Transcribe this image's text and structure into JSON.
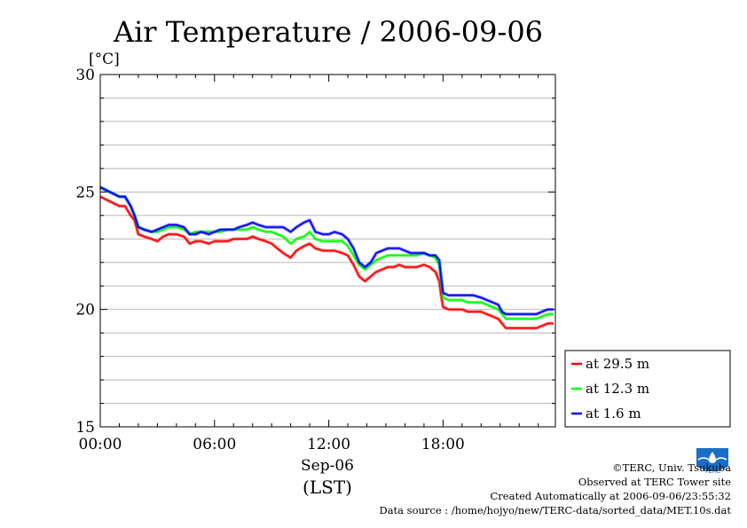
{
  "chart_data": {
    "type": "line",
    "title": "Air Temperature / 2006-09-06",
    "ylabel": "[°C]",
    "xlabel": "Sep-06",
    "xlabel2": "(LST)",
    "ylim": [
      15,
      30
    ],
    "xlim_hours": [
      0,
      23.9
    ],
    "yticks": [
      "15",
      "20",
      "25",
      "30"
    ],
    "yticks_values": [
      15,
      20,
      25,
      30
    ],
    "xticks": [
      "00:00",
      "06:00",
      "12:00",
      "18:00"
    ],
    "xticks_hours": [
      0,
      6,
      12,
      18
    ],
    "grid": true,
    "legend_position": "bottom-right-outside",
    "series": [
      {
        "name": "at 29.5 m",
        "color": "#ff0000",
        "x_hours": [
          0,
          0.5,
          1,
          1.3,
          1.6,
          1.8,
          2,
          2.3,
          2.7,
          3,
          3.3,
          3.6,
          4,
          4.4,
          4.7,
          5,
          5.3,
          5.7,
          6,
          6.3,
          6.7,
          7,
          7.3,
          7.7,
          8,
          8.3,
          8.7,
          9,
          9.3,
          9.6,
          10,
          10.3,
          10.7,
          11,
          11.3,
          11.7,
          12,
          12.3,
          12.7,
          13,
          13.3,
          13.6,
          13.9,
          14.2,
          14.5,
          14.8,
          15.1,
          15.4,
          15.7,
          16,
          16.3,
          16.6,
          17,
          17.3,
          17.6,
          17.8,
          17.9,
          18,
          18.3,
          18.7,
          19,
          19.3,
          19.6,
          20,
          20.3,
          20.6,
          20.9,
          21.1,
          21.3,
          21.6,
          22,
          22.3,
          22.6,
          22.9,
          23.2,
          23.5,
          23.8
        ],
        "values": [
          24.8,
          24.6,
          24.4,
          24.4,
          24.0,
          23.8,
          23.2,
          23.1,
          23.0,
          22.9,
          23.1,
          23.2,
          23.2,
          23.1,
          22.8,
          22.9,
          22.9,
          22.8,
          22.9,
          22.9,
          22.9,
          23.0,
          23.0,
          23.0,
          23.1,
          23.0,
          22.9,
          22.8,
          22.6,
          22.4,
          22.2,
          22.5,
          22.7,
          22.8,
          22.6,
          22.5,
          22.5,
          22.5,
          22.4,
          22.3,
          21.9,
          21.4,
          21.2,
          21.4,
          21.6,
          21.7,
          21.8,
          21.8,
          21.9,
          21.8,
          21.8,
          21.8,
          21.9,
          21.8,
          21.6,
          21.2,
          20.6,
          20.1,
          20.0,
          20.0,
          20.0,
          19.9,
          19.9,
          19.9,
          19.8,
          19.7,
          19.6,
          19.4,
          19.2,
          19.2,
          19.2,
          19.2,
          19.2,
          19.2,
          19.3,
          19.4,
          19.4
        ]
      },
      {
        "name": "at 12.3 m",
        "color": "#00ff00",
        "x_hours": [
          0,
          0.5,
          1,
          1.3,
          1.6,
          1.8,
          2,
          2.3,
          2.7,
          3,
          3.3,
          3.6,
          4,
          4.4,
          4.7,
          5,
          5.3,
          5.7,
          6,
          6.3,
          6.7,
          7,
          7.3,
          7.7,
          8,
          8.3,
          8.7,
          9,
          9.3,
          9.6,
          10,
          10.3,
          10.7,
          11,
          11.3,
          11.7,
          12,
          12.3,
          12.7,
          13,
          13.3,
          13.6,
          13.9,
          14.2,
          14.5,
          14.8,
          15.1,
          15.4,
          15.7,
          16,
          16.3,
          16.6,
          17,
          17.3,
          17.6,
          17.8,
          17.9,
          18,
          18.3,
          18.7,
          19,
          19.3,
          19.6,
          20,
          20.3,
          20.6,
          20.9,
          21.1,
          21.3,
          21.6,
          22,
          22.3,
          22.6,
          22.9,
          23.2,
          23.5,
          23.8
        ],
        "values": [
          25.2,
          25.0,
          24.8,
          24.8,
          24.4,
          24.0,
          23.5,
          23.4,
          23.3,
          23.3,
          23.4,
          23.5,
          23.5,
          23.4,
          23.2,
          23.3,
          23.3,
          23.3,
          23.3,
          23.3,
          23.4,
          23.4,
          23.4,
          23.4,
          23.5,
          23.4,
          23.3,
          23.3,
          23.2,
          23.1,
          22.8,
          23.0,
          23.1,
          23.3,
          23.0,
          22.9,
          22.9,
          22.9,
          22.9,
          22.7,
          22.3,
          21.9,
          21.7,
          21.9,
          22.1,
          22.2,
          22.3,
          22.3,
          22.3,
          22.3,
          22.3,
          22.3,
          22.4,
          22.3,
          22.2,
          21.9,
          21.2,
          20.5,
          20.4,
          20.4,
          20.4,
          20.3,
          20.3,
          20.3,
          20.2,
          20.1,
          20.0,
          19.8,
          19.6,
          19.6,
          19.6,
          19.6,
          19.6,
          19.6,
          19.7,
          19.8,
          19.8
        ]
      },
      {
        "name": "at 1.6 m",
        "color": "#0000ff",
        "x_hours": [
          0,
          0.5,
          1,
          1.3,
          1.6,
          1.8,
          2,
          2.3,
          2.7,
          3,
          3.3,
          3.6,
          4,
          4.4,
          4.7,
          5,
          5.3,
          5.7,
          6,
          6.3,
          6.7,
          7,
          7.3,
          7.7,
          8,
          8.3,
          8.7,
          9,
          9.3,
          9.6,
          10,
          10.3,
          10.7,
          11,
          11.3,
          11.7,
          12,
          12.3,
          12.7,
          13,
          13.3,
          13.6,
          13.9,
          14.2,
          14.5,
          14.8,
          15.1,
          15.4,
          15.7,
          16,
          16.3,
          16.6,
          17,
          17.3,
          17.6,
          17.8,
          17.9,
          18,
          18.3,
          18.7,
          19,
          19.3,
          19.6,
          20,
          20.3,
          20.6,
          20.9,
          21.1,
          21.3,
          21.6,
          22,
          22.3,
          22.6,
          22.9,
          23.2,
          23.5,
          23.8
        ],
        "values": [
          25.2,
          25.0,
          24.8,
          24.8,
          24.4,
          24.0,
          23.5,
          23.4,
          23.3,
          23.4,
          23.5,
          23.6,
          23.6,
          23.5,
          23.2,
          23.2,
          23.3,
          23.2,
          23.3,
          23.4,
          23.4,
          23.4,
          23.5,
          23.6,
          23.7,
          23.6,
          23.5,
          23.5,
          23.5,
          23.5,
          23.3,
          23.5,
          23.7,
          23.8,
          23.3,
          23.2,
          23.2,
          23.3,
          23.2,
          23.0,
          22.6,
          22.0,
          21.8,
          22.0,
          22.4,
          22.5,
          22.6,
          22.6,
          22.6,
          22.5,
          22.4,
          22.4,
          22.4,
          22.3,
          22.3,
          22.1,
          21.4,
          20.7,
          20.6,
          20.6,
          20.6,
          20.6,
          20.6,
          20.5,
          20.4,
          20.3,
          20.2,
          19.9,
          19.8,
          19.8,
          19.8,
          19.8,
          19.8,
          19.8,
          19.9,
          20.0,
          20.0
        ]
      }
    ]
  },
  "footer": {
    "line1": "©TERC, Univ. Tsukuba",
    "line2": "Observed at TERC Tower site",
    "line3": "Created Automatically at 2006-09-06/23:55:32",
    "line4": "Data source : /home/hojyo/new/TERC-data/sorted_data/MET.10s.dat"
  },
  "logo": {
    "name": "terc-logo",
    "text": "TERC",
    "color": "#1a6fc4"
  }
}
